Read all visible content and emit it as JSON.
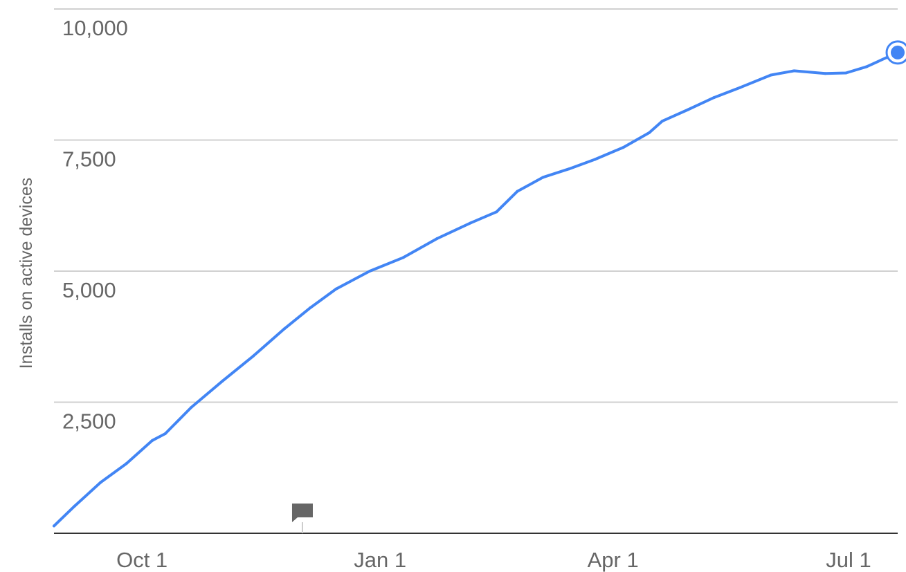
{
  "chart_data": {
    "type": "line",
    "ylabel": "Installs on active devices",
    "xlabel": "",
    "title": "",
    "ylim": [
      0,
      10000
    ],
    "xlim": [
      "2013-08-28",
      "2014-07-20"
    ],
    "y_ticks": [
      {
        "value": 10000,
        "label": "10,000"
      },
      {
        "value": 7500,
        "label": "7,500"
      },
      {
        "value": 5000,
        "label": "5,000"
      },
      {
        "value": 2500,
        "label": "2,500"
      }
    ],
    "x_ticks": [
      {
        "date": "2013-10-01",
        "label": "Oct 1"
      },
      {
        "date": "2014-01-01",
        "label": "Jan 1"
      },
      {
        "date": "2014-04-01",
        "label": "Apr 1"
      },
      {
        "date": "2014-07-01",
        "label": "Jul 1"
      }
    ],
    "grid": true,
    "legend": "none",
    "series": [
      {
        "color": "#4285f4",
        "points": [
          {
            "date": "2013-08-28",
            "value": 140
          },
          {
            "date": "2013-09-05",
            "value": 520
          },
          {
            "date": "2013-09-15",
            "value": 970
          },
          {
            "date": "2013-09-25",
            "value": 1330
          },
          {
            "date": "2013-10-05",
            "value": 1770
          },
          {
            "date": "2013-10-10",
            "value": 1900
          },
          {
            "date": "2013-10-20",
            "value": 2400
          },
          {
            "date": "2013-11-01",
            "value": 2900
          },
          {
            "date": "2013-11-13",
            "value": 3380
          },
          {
            "date": "2013-11-25",
            "value": 3900
          },
          {
            "date": "2013-12-05",
            "value": 4300
          },
          {
            "date": "2013-12-15",
            "value": 4660
          },
          {
            "date": "2013-12-28",
            "value": 5000
          },
          {
            "date": "2014-01-10",
            "value": 5260
          },
          {
            "date": "2014-01-23",
            "value": 5620
          },
          {
            "date": "2014-02-05",
            "value": 5920
          },
          {
            "date": "2014-02-15",
            "value": 6130
          },
          {
            "date": "2014-02-23",
            "value": 6520
          },
          {
            "date": "2014-03-05",
            "value": 6790
          },
          {
            "date": "2014-03-15",
            "value": 6950
          },
          {
            "date": "2014-03-25",
            "value": 7130
          },
          {
            "date": "2014-04-05",
            "value": 7360
          },
          {
            "date": "2014-04-15",
            "value": 7640
          },
          {
            "date": "2014-04-20",
            "value": 7860
          },
          {
            "date": "2014-04-30",
            "value": 8080
          },
          {
            "date": "2014-05-10",
            "value": 8310
          },
          {
            "date": "2014-05-20",
            "value": 8500
          },
          {
            "date": "2014-06-01",
            "value": 8740
          },
          {
            "date": "2014-06-10",
            "value": 8820
          },
          {
            "date": "2014-06-22",
            "value": 8770
          },
          {
            "date": "2014-06-30",
            "value": 8780
          },
          {
            "date": "2014-07-08",
            "value": 8900
          },
          {
            "date": "2014-07-20",
            "value": 9170
          }
        ],
        "highlight": {
          "date": "2014-07-20",
          "value": 9170
        }
      }
    ],
    "annotations": [
      {
        "date": "2013-12-02",
        "marker": "flag-icon"
      }
    ]
  }
}
